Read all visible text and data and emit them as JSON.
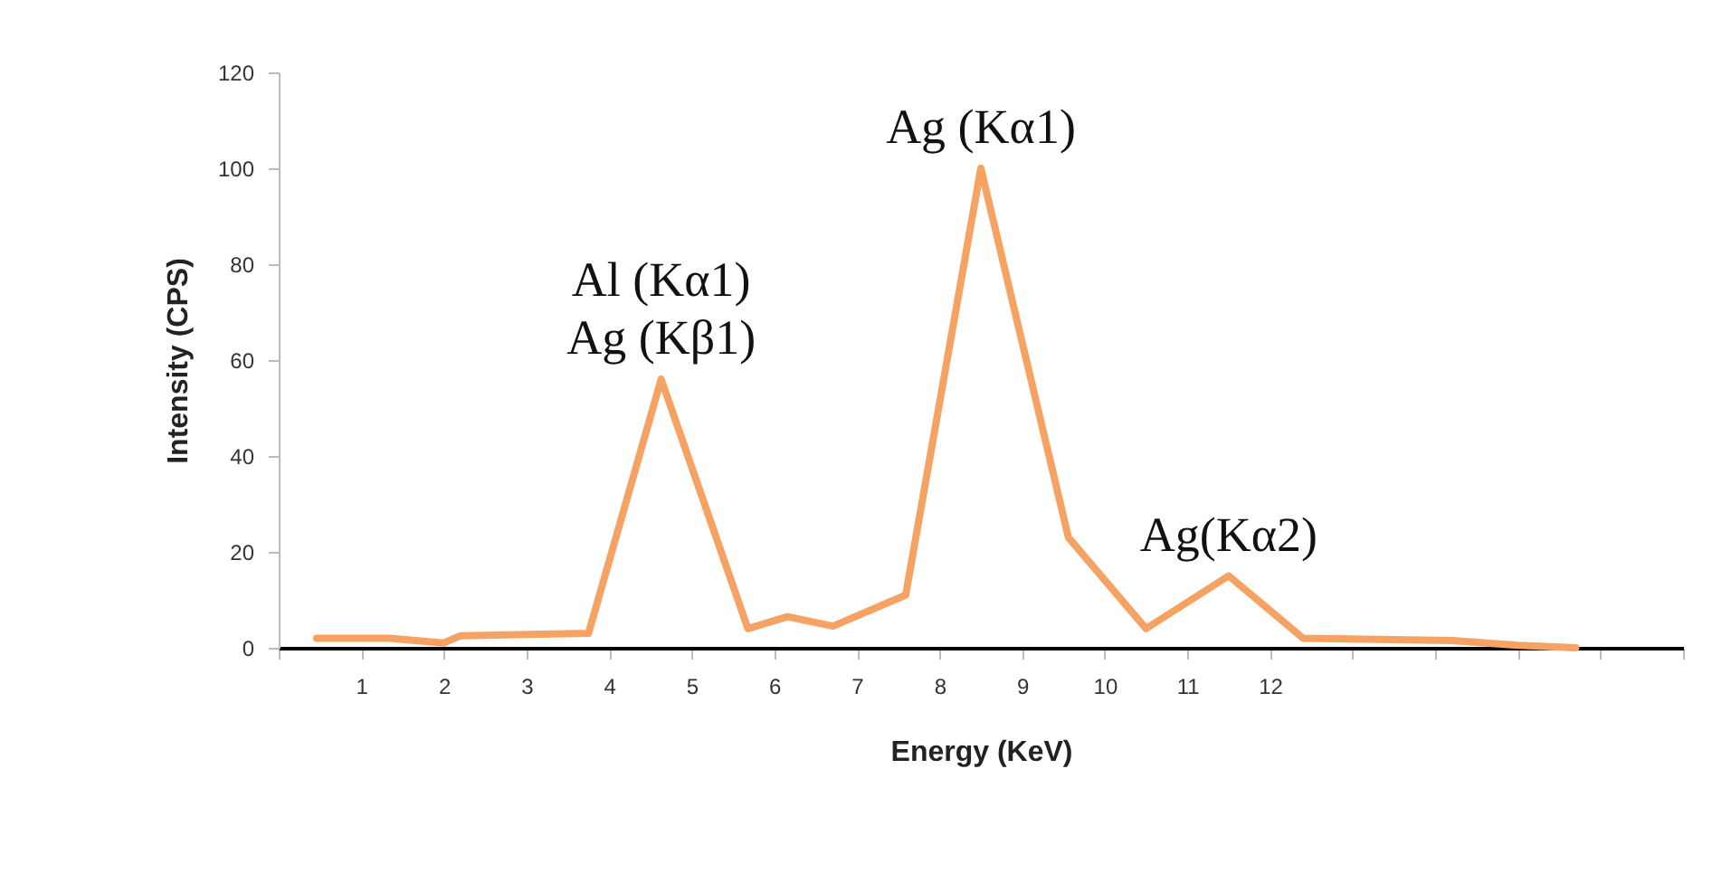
{
  "chart_data": {
    "type": "line",
    "xlabel": "Energy (KeV)",
    "ylabel": "Intensity (CPS)",
    "x": [
      0.46,
      1.34,
      2.0,
      2.2,
      3.75,
      4.63,
      5.68,
      6.16,
      6.71,
      7.59,
      8.5,
      9.56,
      10.5,
      11.5,
      12.4,
      14.2,
      15.0,
      15.7
    ],
    "series": [
      {
        "color": "#f5a263",
        "values": [
          2,
          2,
          1,
          2.5,
          3,
          56,
          4,
          6.5,
          4.5,
          11,
          100,
          23,
          4,
          15,
          2,
          1.5,
          0.5,
          0
        ]
      }
    ],
    "xlim": [
      0,
      17
    ],
    "xticks": [
      {
        "value": 0,
        "label": null
      },
      1,
      2,
      3,
      4,
      5,
      6,
      7,
      8,
      9,
      10,
      11,
      12,
      {
        "value": 13,
        "label": null
      },
      {
        "value": 14,
        "label": null
      },
      {
        "value": 15,
        "label": null
      },
      {
        "value": 16,
        "label": null
      },
      {
        "value": 17,
        "label": null
      }
    ],
    "ylim": [
      0,
      120
    ],
    "yticks": [
      0,
      20,
      40,
      60,
      80,
      100,
      120
    ],
    "grid": false,
    "marker": "none",
    "line_style": "solid",
    "annotations": [
      {
        "text": "Al (Kα1)",
        "x": 4.63,
        "y": 56
      },
      {
        "text": "Ag (Kβ1)",
        "x": 4.63,
        "y": 56
      },
      {
        "text": "Ag (Kα1)",
        "x": 8.5,
        "y": 100
      },
      {
        "text": "Ag(Kα2)",
        "x": 11.5,
        "y": 15
      }
    ]
  }
}
